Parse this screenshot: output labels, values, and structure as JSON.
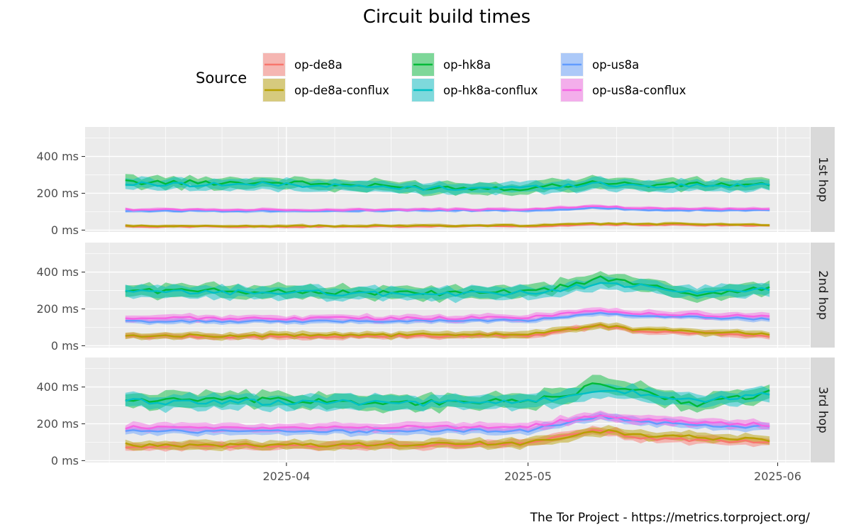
{
  "chart_data": {
    "type": "line",
    "title": "Circuit build times",
    "caption": "The Tor Project - https://metrics.torproject.org/",
    "legend": {
      "title": "Source",
      "placement": "top",
      "entries": [
        "op-de8a",
        "op-de8a-conflux",
        "op-hk8a",
        "op-hk8a-conflux",
        "op-us8a",
        "op-us8a-conflux"
      ]
    },
    "x": {
      "type": "date",
      "range": [
        "2025-03-07",
        "2025-06-05"
      ],
      "ticks": [
        "2025-04-01",
        "2025-05-01",
        "2025-06-01"
      ],
      "tick_labels": [
        "2025-04",
        "2025-05",
        "2025-06"
      ],
      "data_start": "2025-03-12",
      "data_end": "2025-05-31"
    },
    "y": {
      "ylim": [
        -10,
        560
      ],
      "ticks": [
        0,
        200,
        400
      ],
      "tick_labels": [
        "0 ms",
        "200 ms",
        "400 ms"
      ]
    },
    "grid": true,
    "series_colors": {
      "op-de8a": "#F8766D",
      "op-de8a-conflux": "#B79F00",
      "op-hk8a": "#00BA38",
      "op-hk8a-conflux": "#00BFC4",
      "op-us8a": "#619CFF",
      "op-us8a-conflux": "#F564E3"
    },
    "panels": [
      {
        "label": "1st hop",
        "series": [
          {
            "name": "op-hk8a",
            "points": [
              [
                "2025-03-12",
                260
              ],
              [
                "2025-04-01",
                258
              ],
              [
                "2025-04-16",
                232
              ],
              [
                "2025-05-01",
                228
              ],
              [
                "2025-05-10",
                262
              ],
              [
                "2025-05-15",
                245
              ],
              [
                "2025-05-31",
                250
              ]
            ],
            "spread": 38
          },
          {
            "name": "op-hk8a-conflux",
            "points": [
              [
                "2025-03-12",
                250
              ],
              [
                "2025-04-01",
                248
              ],
              [
                "2025-04-16",
                228
              ],
              [
                "2025-05-01",
                230
              ],
              [
                "2025-05-10",
                252
              ],
              [
                "2025-05-15",
                240
              ],
              [
                "2025-05-31",
                242
              ]
            ],
            "spread": 36
          },
          {
            "name": "op-us8a",
            "points": [
              [
                "2025-03-12",
                105
              ],
              [
                "2025-04-01",
                105
              ],
              [
                "2025-05-01",
                107
              ],
              [
                "2025-05-10",
                120
              ],
              [
                "2025-05-15",
                110
              ],
              [
                "2025-05-31",
                108
              ]
            ],
            "spread": 10
          },
          {
            "name": "op-us8a-conflux",
            "points": [
              [
                "2025-03-12",
                112
              ],
              [
                "2025-04-01",
                110
              ],
              [
                "2025-05-01",
                112
              ],
              [
                "2025-05-10",
                130
              ],
              [
                "2025-05-15",
                118
              ],
              [
                "2025-05-31",
                112
              ]
            ],
            "spread": 11
          },
          {
            "name": "op-de8a",
            "points": [
              [
                "2025-03-12",
                20
              ],
              [
                "2025-04-01",
                18
              ],
              [
                "2025-05-01",
                22
              ],
              [
                "2025-05-10",
                30
              ],
              [
                "2025-05-31",
                25
              ]
            ],
            "spread": 8
          },
          {
            "name": "op-de8a-conflux",
            "points": [
              [
                "2025-03-12",
                22
              ],
              [
                "2025-04-01",
                22
              ],
              [
                "2025-05-01",
                25
              ],
              [
                "2025-05-10",
                35
              ],
              [
                "2025-05-31",
                30
              ]
            ],
            "spread": 10
          }
        ]
      },
      {
        "label": "2nd hop",
        "series": [
          {
            "name": "op-hk8a",
            "points": [
              [
                "2025-03-12",
                300
              ],
              [
                "2025-04-01",
                295
              ],
              [
                "2025-04-16",
                285
              ],
              [
                "2025-05-01",
                290
              ],
              [
                "2025-05-06",
                325
              ],
              [
                "2025-05-10",
                370
              ],
              [
                "2025-05-15",
                330
              ],
              [
                "2025-05-22",
                280
              ],
              [
                "2025-05-31",
                315
              ]
            ],
            "spread": 42
          },
          {
            "name": "op-hk8a-conflux",
            "points": [
              [
                "2025-03-12",
                290
              ],
              [
                "2025-04-01",
                290
              ],
              [
                "2025-04-16",
                280
              ],
              [
                "2025-05-01",
                285
              ],
              [
                "2025-05-06",
                315
              ],
              [
                "2025-05-10",
                340
              ],
              [
                "2025-05-15",
                320
              ],
              [
                "2025-05-22",
                285
              ],
              [
                "2025-05-31",
                310
              ]
            ],
            "spread": 40
          },
          {
            "name": "op-us8a",
            "points": [
              [
                "2025-03-12",
                132
              ],
              [
                "2025-04-01",
                132
              ],
              [
                "2025-05-01",
                138
              ],
              [
                "2025-05-10",
                175
              ],
              [
                "2025-05-15",
                160
              ],
              [
                "2025-05-31",
                145
              ]
            ],
            "spread": 16
          },
          {
            "name": "op-us8a-conflux",
            "points": [
              [
                "2025-03-12",
                150
              ],
              [
                "2025-04-01",
                148
              ],
              [
                "2025-05-01",
                152
              ],
              [
                "2025-05-10",
                195
              ],
              [
                "2025-05-15",
                175
              ],
              [
                "2025-05-31",
                158
              ]
            ],
            "spread": 22
          },
          {
            "name": "op-de8a",
            "points": [
              [
                "2025-03-12",
                50
              ],
              [
                "2025-04-01",
                48
              ],
              [
                "2025-05-01",
                55
              ],
              [
                "2025-05-10",
                110
              ],
              [
                "2025-05-15",
                80
              ],
              [
                "2025-05-31",
                55
              ]
            ],
            "spread": 18
          },
          {
            "name": "op-de8a-conflux",
            "points": [
              [
                "2025-03-12",
                55
              ],
              [
                "2025-04-01",
                55
              ],
              [
                "2025-05-01",
                62
              ],
              [
                "2025-05-10",
                110
              ],
              [
                "2025-05-15",
                85
              ],
              [
                "2025-05-31",
                65
              ]
            ],
            "spread": 22
          }
        ]
      },
      {
        "label": "3rd hop",
        "series": [
          {
            "name": "op-hk8a",
            "points": [
              [
                "2025-03-12",
                330
              ],
              [
                "2025-04-01",
                325
              ],
              [
                "2025-04-16",
                315
              ],
              [
                "2025-05-01",
                320
              ],
              [
                "2025-05-06",
                360
              ],
              [
                "2025-05-10",
                420
              ],
              [
                "2025-05-15",
                375
              ],
              [
                "2025-05-22",
                305
              ],
              [
                "2025-05-31",
                370
              ]
            ],
            "spread": 50
          },
          {
            "name": "op-hk8a-conflux",
            "points": [
              [
                "2025-03-12",
                320
              ],
              [
                "2025-04-01",
                318
              ],
              [
                "2025-04-16",
                310
              ],
              [
                "2025-05-01",
                315
              ],
              [
                "2025-05-06",
                350
              ],
              [
                "2025-05-10",
                385
              ],
              [
                "2025-05-15",
                365
              ],
              [
                "2025-05-22",
                320
              ],
              [
                "2025-05-31",
                365
              ]
            ],
            "spread": 46
          },
          {
            "name": "op-us8a",
            "points": [
              [
                "2025-03-12",
                160
              ],
              [
                "2025-04-01",
                158
              ],
              [
                "2025-05-01",
                165
              ],
              [
                "2025-05-10",
                240
              ],
              [
                "2025-05-15",
                210
              ],
              [
                "2025-05-31",
                180
              ]
            ],
            "spread": 25
          },
          {
            "name": "op-us8a-conflux",
            "points": [
              [
                "2025-03-12",
                180
              ],
              [
                "2025-04-01",
                178
              ],
              [
                "2025-05-01",
                185
              ],
              [
                "2025-05-10",
                250
              ],
              [
                "2025-05-15",
                220
              ],
              [
                "2025-05-31",
                195
              ]
            ],
            "spread": 28
          },
          {
            "name": "op-de8a",
            "points": [
              [
                "2025-03-12",
                80
              ],
              [
                "2025-04-01",
                78
              ],
              [
                "2025-05-01",
                90
              ],
              [
                "2025-05-10",
                170
              ],
              [
                "2025-05-15",
                120
              ],
              [
                "2025-05-31",
                100
              ]
            ],
            "spread": 26
          },
          {
            "name": "op-de8a-conflux",
            "points": [
              [
                "2025-03-12",
                85
              ],
              [
                "2025-04-01",
                85
              ],
              [
                "2025-05-01",
                95
              ],
              [
                "2025-05-10",
                160
              ],
              [
                "2025-05-15",
                140
              ],
              [
                "2025-05-31",
                110
              ]
            ],
            "spread": 30
          }
        ]
      }
    ]
  }
}
